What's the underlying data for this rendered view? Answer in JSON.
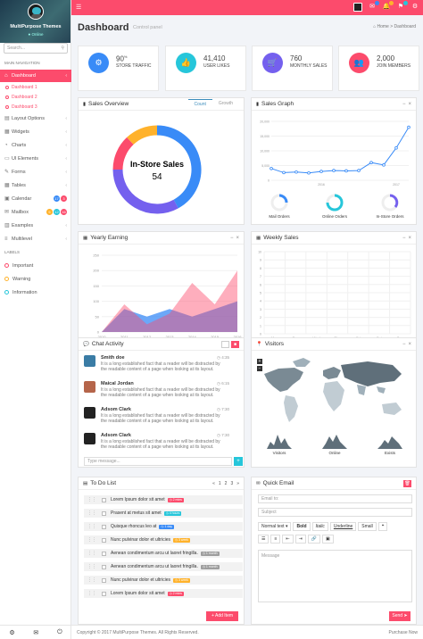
{
  "profile": {
    "name": "MultiPurpose Themes",
    "status": "Online"
  },
  "search": {
    "placeholder": "Search..."
  },
  "sidebar": {
    "header": "MAIN NAVIGATION",
    "items": [
      {
        "label": "Dashboard",
        "icon": "home-icon"
      },
      {
        "label": "Layout Options",
        "icon": "layout-icon"
      },
      {
        "label": "Widgets",
        "icon": "widgets-icon"
      },
      {
        "label": "Charts",
        "icon": "chart-icon"
      },
      {
        "label": "UI Elements",
        "icon": "ui-icon"
      },
      {
        "label": "Forms",
        "icon": "forms-icon"
      },
      {
        "label": "Tables",
        "icon": "tables-icon"
      },
      {
        "label": "Calendar",
        "icon": "calendar-icon",
        "badges": [
          "17",
          "3"
        ]
      },
      {
        "label": "Mailbox",
        "icon": "mail-icon",
        "badges": [
          "5",
          "12",
          "16"
        ]
      },
      {
        "label": "Examples",
        "icon": "examples-icon"
      },
      {
        "label": "Multilevel",
        "icon": "multilevel-icon"
      }
    ],
    "subitems": [
      "Dashboard 1",
      "Dashboard 2",
      "Dashboard 3"
    ],
    "labels_header": "LABELS",
    "labels": [
      {
        "label": "Important",
        "color": "#fc4b6c"
      },
      {
        "label": "Warning",
        "color": "#ffb22b"
      },
      {
        "label": "Information",
        "color": "#26c6da"
      }
    ]
  },
  "colors": {
    "accent": "#fc4b6c",
    "blue": "#398bf7",
    "teal": "#26c6da",
    "purple": "#7460ee",
    "orange": "#ffb22b"
  },
  "page": {
    "title": "Dashboard",
    "subtitle": "Control panel",
    "crumb_home": "Home",
    "crumb_current": "Dashboard"
  },
  "stats": [
    {
      "value": "90",
      "sup": "%",
      "label": "STORE TRAFFIC",
      "color": "#398bf7",
      "icon": "settings-icon"
    },
    {
      "value": "41,410",
      "label": "USER LIKES",
      "color": "#26c6da",
      "icon": "like-icon"
    },
    {
      "value": "760",
      "label": "MONTHLY SALES",
      "color": "#7460ee",
      "icon": "cart-icon"
    },
    {
      "value": "2,000",
      "label": "JOIN MEMBERS",
      "color": "#fc4b6c",
      "icon": "users-icon"
    }
  ],
  "sales_overview": {
    "title": "Sales Overview",
    "tab1": "Count",
    "tab2": "Growth",
    "center_title": "In-Store Sales",
    "center_value": "54"
  },
  "sales_graph": {
    "title": "Sales Graph",
    "orders": [
      {
        "label": "Mail Orders"
      },
      {
        "label": "Online Orders"
      },
      {
        "label": "In-Store Orders"
      }
    ]
  },
  "yearly": {
    "title": "Yearly Earning"
  },
  "weekly": {
    "title": "Weekly Sales"
  },
  "chat": {
    "title": "Chat Activity",
    "items": [
      {
        "name": "Smith doe",
        "time": "4:35",
        "msg": "It is a long established fact that a reader will be distracted by the readable content of a page when looking at its layout."
      },
      {
        "name": "Maical Jordan",
        "time": "6:15",
        "msg": "It is a long established fact that a reader will be distracted by the readable content of a page when looking at its layout."
      },
      {
        "name": "Adsom Clark",
        "time": "7:30",
        "msg": "It is a long established fact that a reader will be distracted by the readable content of a page when looking at its layout."
      },
      {
        "name": "Adsom Clark",
        "time": "7:30",
        "msg": "It is a long established fact that a reader will be distracted by the readable content of a page when looking at its layout."
      }
    ],
    "input_placeholder": "Type message..."
  },
  "visitors": {
    "title": "Visitors",
    "sparks": [
      "Visitors",
      "Online",
      "Exists"
    ]
  },
  "todo": {
    "title": "To Do List",
    "pages": [
      "«",
      "1",
      "2",
      "3",
      "»"
    ],
    "items": [
      {
        "text": "Lorem Ipsum dolor sit amet",
        "tag": "2 mins",
        "tag_color": "#fc4b6c"
      },
      {
        "text": "Prasent at metus sit amet",
        "tag": "4 hours",
        "tag_color": "#26c6da"
      },
      {
        "text": "Quisque rhoncus leo at",
        "tag": "1 day",
        "tag_color": "#398bf7"
      },
      {
        "text": "Nunc pulvinar dolor et ultricies",
        "tag": "3 week",
        "tag_color": "#ffb22b"
      },
      {
        "text": "Aenean condimentum arcu ut laoret fringilla.",
        "tag": "1 month",
        "tag_color": "#9e9e9e"
      },
      {
        "text": "Aenean condimentum arcu ut laoret fringilla.",
        "tag": "1 month",
        "tag_color": "#9e9e9e"
      },
      {
        "text": "Nunc pulvinar dolor et ultricies",
        "tag": "3 week",
        "tag_color": "#ffb22b"
      },
      {
        "text": "Lorem Ipsum dolor sit amet",
        "tag": "2 mins",
        "tag_color": "#fc4b6c"
      }
    ],
    "add_label": "+ Add Item"
  },
  "quick_email": {
    "title": "Quick Email",
    "email_placeholder": "Email to:",
    "subject_placeholder": "Subject",
    "toolbar": [
      "Normal text",
      "Bold",
      "Italic",
      "Underline",
      "Small"
    ],
    "message_placeholder": "Message",
    "send_label": "Send"
  },
  "footer": {
    "copyright": "Copyright © 2017 MultiPurpose Themes. All Rights Reserved.",
    "link": "Purchase Now"
  },
  "chart_data": [
    {
      "type": "pie",
      "title": "Sales Overview",
      "labels": [
        "",
        "",
        "",
        ""
      ],
      "values": [
        42,
        33,
        13,
        12
      ],
      "colors": [
        "#398bf7",
        "#7460ee",
        "#fc4b6c",
        "#ffb22b"
      ],
      "center_text": "In-Store Sales 54"
    },
    {
      "type": "line",
      "title": "Sales Graph",
      "x": [
        "",
        "",
        "",
        "",
        "",
        "",
        "",
        "",
        "",
        "",
        "",
        ""
      ],
      "xticks": [
        "2016",
        "2017"
      ],
      "yticks": [
        "0",
        "5,000",
        "10,000",
        "15,000",
        "20,000"
      ],
      "values": [
        4000,
        2600,
        2800,
        2500,
        3000,
        3300,
        3200,
        3300,
        6000,
        5200,
        11000,
        18000
      ],
      "ylim": [
        0,
        20000
      ],
      "color": "#398bf7"
    },
    {
      "type": "area",
      "title": "Yearly Earning",
      "categories": [
        "2010",
        "2011",
        "2012",
        "2013",
        "2014",
        "2015",
        "2016"
      ],
      "yticks": [
        "0",
        "50",
        "100",
        "150",
        "200",
        "250"
      ],
      "ylim": [
        0,
        250
      ],
      "series": [
        {
          "values": [
            0,
            75,
            50,
            75,
            50,
            75,
            100
          ],
          "color": "#398bf7"
        },
        {
          "values": [
            0,
            90,
            25,
            60,
            160,
            90,
            200
          ],
          "color": "#fc4b6c"
        }
      ]
    },
    {
      "type": "bar",
      "title": "Weekly Sales",
      "categories": [
        "Mon",
        "Tue",
        "Wed",
        "Thu",
        "Fri",
        "Sat",
        "Sun"
      ],
      "values": [
        0,
        0,
        0,
        0,
        0,
        0,
        0
      ],
      "yticks": [
        "0",
        "1",
        "2",
        "3",
        "4",
        "5",
        "6",
        "7",
        "8",
        "9",
        "10"
      ],
      "ylim": [
        0,
        10
      ]
    }
  ]
}
